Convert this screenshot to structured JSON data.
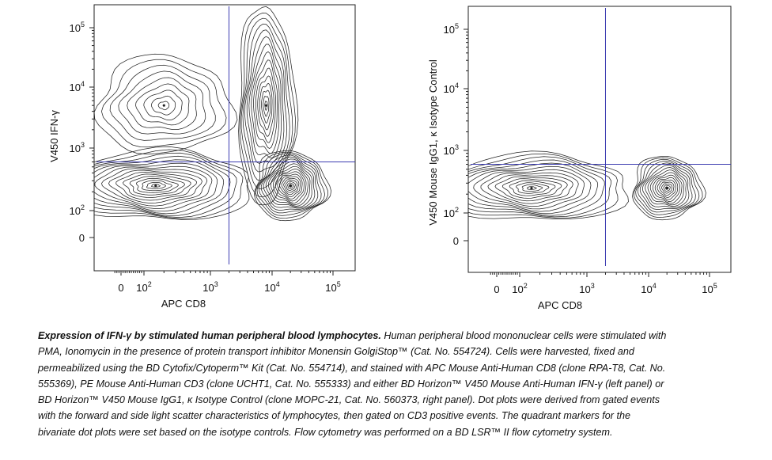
{
  "chart_data": [
    {
      "type": "contour",
      "xlabel": "APC CD8",
      "ylabel": "V450 IFN-γ",
      "x_scale": "biexponential",
      "y_scale": "biexponential",
      "x_ticks": [
        "0",
        "10^2",
        "10^3",
        "10^4",
        "10^5"
      ],
      "y_ticks": [
        "0",
        "10^2",
        "10^3",
        "10^4",
        "10^5"
      ],
      "quadrant_gate": {
        "x": 2000,
        "y": 600
      },
      "populations": [
        {
          "x": 150,
          "y": 250
        },
        {
          "x": 20000,
          "y": 250
        },
        {
          "x": 8000,
          "y": 5000
        },
        {
          "x": 200,
          "y": 5000
        }
      ]
    },
    {
      "type": "contour",
      "xlabel": "APC CD8",
      "ylabel": "V450 Mouse IgG1, κ Isotype Control",
      "x_scale": "biexponential",
      "y_scale": "biexponential",
      "x_ticks": [
        "0",
        "10^2",
        "10^3",
        "10^4",
        "10^5"
      ],
      "y_ticks": [
        "0",
        "10^2",
        "10^3",
        "10^4",
        "10^5"
      ],
      "quadrant_gate": {
        "x": 2000,
        "y": 600
      },
      "populations": [
        {
          "x": 150,
          "y": 250
        },
        {
          "x": 20000,
          "y": 250
        }
      ]
    }
  ],
  "caption": {
    "title": "Expression of IFN-γ by stimulated human peripheral blood lymphocytes.",
    "body": " Human peripheral blood mononuclear cells were stimulated with PMA, Ionomycin in the presence of protein transport inhibitor Monensin GolgiStop™ (Cat. No. 554724). Cells were harvested, fixed and permeabilized using the BD Cytofix/Cytoperm™ Kit (Cat. No. 554714), and stained with APC Mouse Anti-Human CD8 (clone RPA-T8, Cat. No. 555369), PE Mouse Anti-Human CD3 (clone UCHT1, Cat. No. 555333) and either BD Horizon™ V450 Mouse Anti-Human IFN-γ (left panel) or BD Horizon™ V450 Mouse IgG1, κ Isotype Control (clone MOPC-21, Cat. No. 560373, right panel). Dot plots were derived from gated events with the forward and side light scatter characteristics of lymphocytes, then gated on CD3 positive events. The quadrant markers for the bivariate dot plots were set based on the isotype controls. Flow cytometry was performed on a BD LSR™ II flow cytometry system."
  }
}
